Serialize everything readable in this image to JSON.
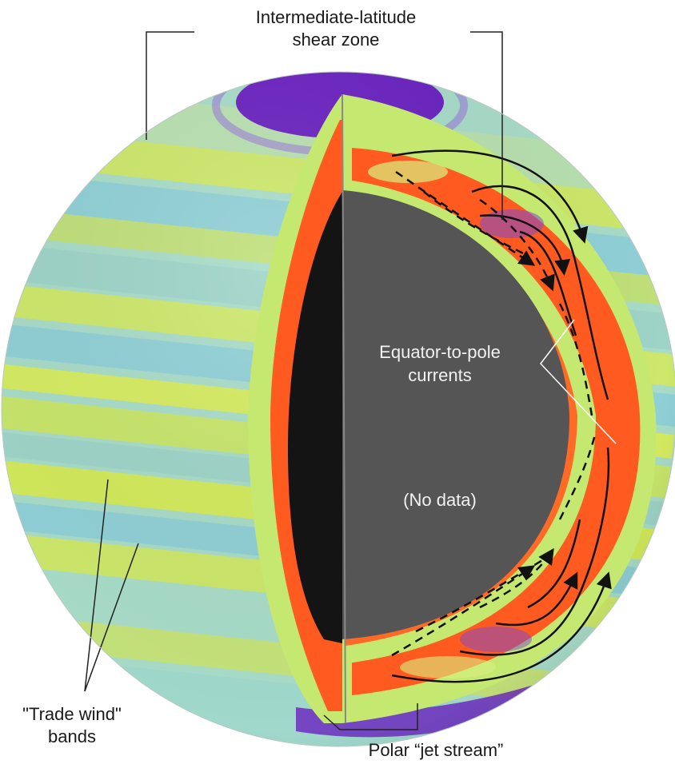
{
  "labels": {
    "shear_zone_line1": "Intermediate-latitude",
    "shear_zone_line2": "shear zone",
    "equator_line1": "Equator-to-pole",
    "equator_line2": "currents",
    "no_data": "(No data)",
    "trade_line1": "\"Trade wind\"",
    "trade_line2": "bands",
    "polar_jet": "Polar “jet stream”"
  },
  "colors": {
    "surface_base": "#a8dcc8",
    "surface_band_yellow": "#cde86a",
    "surface_band_blue": "#8fd0d6",
    "polar_cap": "#6a22c0",
    "hot_layer": "#ff5a1f",
    "mid_layer": "#c4e870",
    "core_dark": "#141414",
    "core_gray": "#555555",
    "inner_text": "#f2f2f2",
    "label_text": "#1a1a1a"
  }
}
